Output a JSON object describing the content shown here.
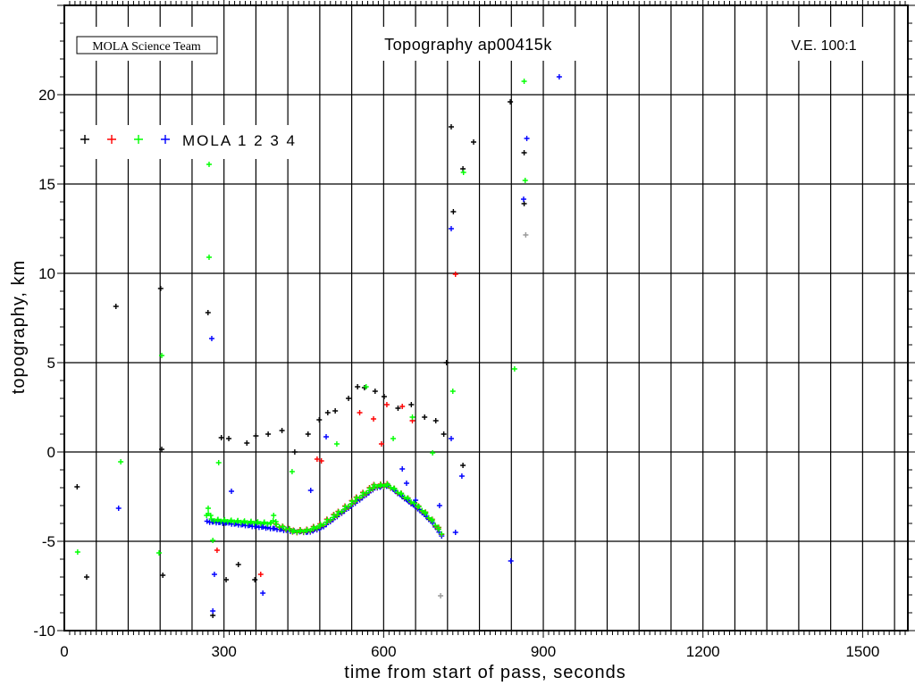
{
  "chart_data": {
    "type": "scatter",
    "title": "Topography ap00415k",
    "credit": "MOLA Science Team",
    "exaggeration": "V.E. 100:1",
    "xlabel": "time from start of pass, seconds",
    "ylabel": "topography, km",
    "xlim": [
      0,
      1585
    ],
    "ylim": [
      -10,
      25
    ],
    "xticks": [
      0,
      300,
      600,
      900,
      1200,
      1500
    ],
    "yticks": [
      -10,
      -5,
      0,
      5,
      10,
      15,
      20
    ],
    "x_grid_step": 60,
    "y_grid_step": 5,
    "grid": true,
    "legend": {
      "label": "MOLA 1 2 3 4",
      "placement": "top-left",
      "colors": [
        "#000000",
        "#ff0000",
        "#00ff00",
        "#0000ff"
      ]
    },
    "series": [
      {
        "name": "MOLA 1",
        "color": "#000000",
        "points": [
          [
            24,
            -1.95
          ],
          [
            42,
            -7
          ],
          [
            97,
            8.15
          ],
          [
            181,
            9.15
          ],
          [
            183,
            0.15
          ],
          [
            185,
            -6.9
          ],
          [
            270,
            7.8
          ],
          [
            279,
            -9.15
          ],
          [
            295,
            0.8
          ],
          [
            309,
            0.75
          ],
          [
            304,
            -7.15
          ],
          [
            327,
            -6.3
          ],
          [
            343,
            0.5
          ],
          [
            358,
            -7.15
          ],
          [
            360,
            0.9
          ],
          [
            383,
            1.0
          ],
          [
            409,
            1.2
          ],
          [
            433,
            0
          ],
          [
            458,
            1.0
          ],
          [
            479,
            1.8
          ],
          [
            495,
            2.2
          ],
          [
            509,
            2.3
          ],
          [
            534,
            3.0
          ],
          [
            551,
            3.65
          ],
          [
            564,
            3.6
          ],
          [
            584,
            3.4
          ],
          [
            601,
            3.1
          ],
          [
            627,
            2.45
          ],
          [
            652,
            2.65
          ],
          [
            677,
            1.95
          ],
          [
            698,
            1.75
          ],
          [
            713,
            1.0
          ],
          [
            718,
            5.0
          ],
          [
            727,
            18.2
          ],
          [
            731,
            13.45
          ],
          [
            749,
            15.85
          ],
          [
            749,
            -0.75
          ],
          [
            769,
            17.35
          ],
          [
            838,
            19.6
          ],
          [
            864,
            16.75
          ],
          [
            864,
            13.9
          ]
        ]
      },
      {
        "name": "MOLA 2",
        "color": "#ff0000",
        "points": [
          [
            287,
            -5.5
          ],
          [
            369,
            -6.85
          ],
          [
            475,
            -0.4
          ],
          [
            483,
            -0.5
          ],
          [
            555,
            2.2
          ],
          [
            581,
            1.85
          ],
          [
            596,
            0.45
          ],
          [
            606,
            2.65
          ],
          [
            635,
            2.55
          ],
          [
            654,
            1.75
          ],
          [
            735,
            9.95
          ]
        ]
      },
      {
        "name": "MOLA 3",
        "color": "#00ff00",
        "points": [
          [
            25,
            -5.6
          ],
          [
            106,
            -0.55
          ],
          [
            178,
            -5.65
          ],
          [
            183,
            5.4
          ],
          [
            272,
            16.1
          ],
          [
            272,
            10.9
          ],
          [
            279,
            -4.95
          ],
          [
            290,
            -0.6
          ],
          [
            428,
            -1.1
          ],
          [
            512,
            0.45
          ],
          [
            567,
            3.65
          ],
          [
            618,
            0.75
          ],
          [
            654,
            1.95
          ],
          [
            692,
            -0.05
          ],
          [
            730,
            3.4
          ],
          [
            750,
            15.65
          ],
          [
            846,
            4.65
          ],
          [
            864,
            20.75
          ],
          [
            866,
            15.2
          ]
        ]
      },
      {
        "name": "MOLA 4",
        "color": "#0000ff",
        "points": [
          [
            102,
            -3.15
          ],
          [
            277,
            6.35
          ],
          [
            279,
            -8.9
          ],
          [
            282,
            -6.85
          ],
          [
            314,
            -2.2
          ],
          [
            373,
            -7.9
          ],
          [
            463,
            -2.15
          ],
          [
            492,
            0.85
          ],
          [
            635,
            -0.95
          ],
          [
            643,
            -1.75
          ],
          [
            660,
            -2.7
          ],
          [
            705,
            -3.0
          ],
          [
            727,
            12.5
          ],
          [
            727,
            0.75
          ],
          [
            735,
            -4.5
          ],
          [
            747,
            -1.35
          ],
          [
            839,
            -6.1
          ],
          [
            863,
            14.15
          ],
          [
            869,
            17.55
          ],
          [
            930,
            21.0
          ]
        ]
      },
      {
        "name": "other",
        "color": "#999999",
        "points": [
          [
            707,
            -8.05
          ],
          [
            867,
            12.15
          ]
        ]
      }
    ],
    "ground_track": {
      "blue": [
        [
          269,
          -3.9
        ],
        [
          310,
          -4.0
        ],
        [
          383,
          -4.25
        ],
        [
          433,
          -4.45
        ],
        [
          458,
          -4.5
        ],
        [
          483,
          -4.25
        ],
        [
          517,
          -3.5
        ],
        [
          551,
          -2.75
        ],
        [
          584,
          -2.0
        ],
        [
          609,
          -1.9
        ],
        [
          635,
          -2.5
        ],
        [
          668,
          -3.25
        ],
        [
          693,
          -4.0
        ],
        [
          713,
          -4.85
        ]
      ],
      "green": [
        [
          269,
          -3.6
        ],
        [
          272,
          -3.2
        ],
        [
          278,
          -3.8
        ],
        [
          390,
          -4.0
        ],
        [
          395,
          -3.6
        ],
        [
          400,
          -4.1
        ],
        [
          433,
          -4.45
        ],
        [
          458,
          -4.4
        ],
        [
          483,
          -4.1
        ],
        [
          517,
          -3.4
        ],
        [
          551,
          -2.6
        ],
        [
          584,
          -1.9
        ],
        [
          609,
          -1.85
        ],
        [
          635,
          -2.4
        ],
        [
          668,
          -3.1
        ],
        [
          693,
          -3.9
        ],
        [
          713,
          -4.7
        ]
      ]
    }
  }
}
